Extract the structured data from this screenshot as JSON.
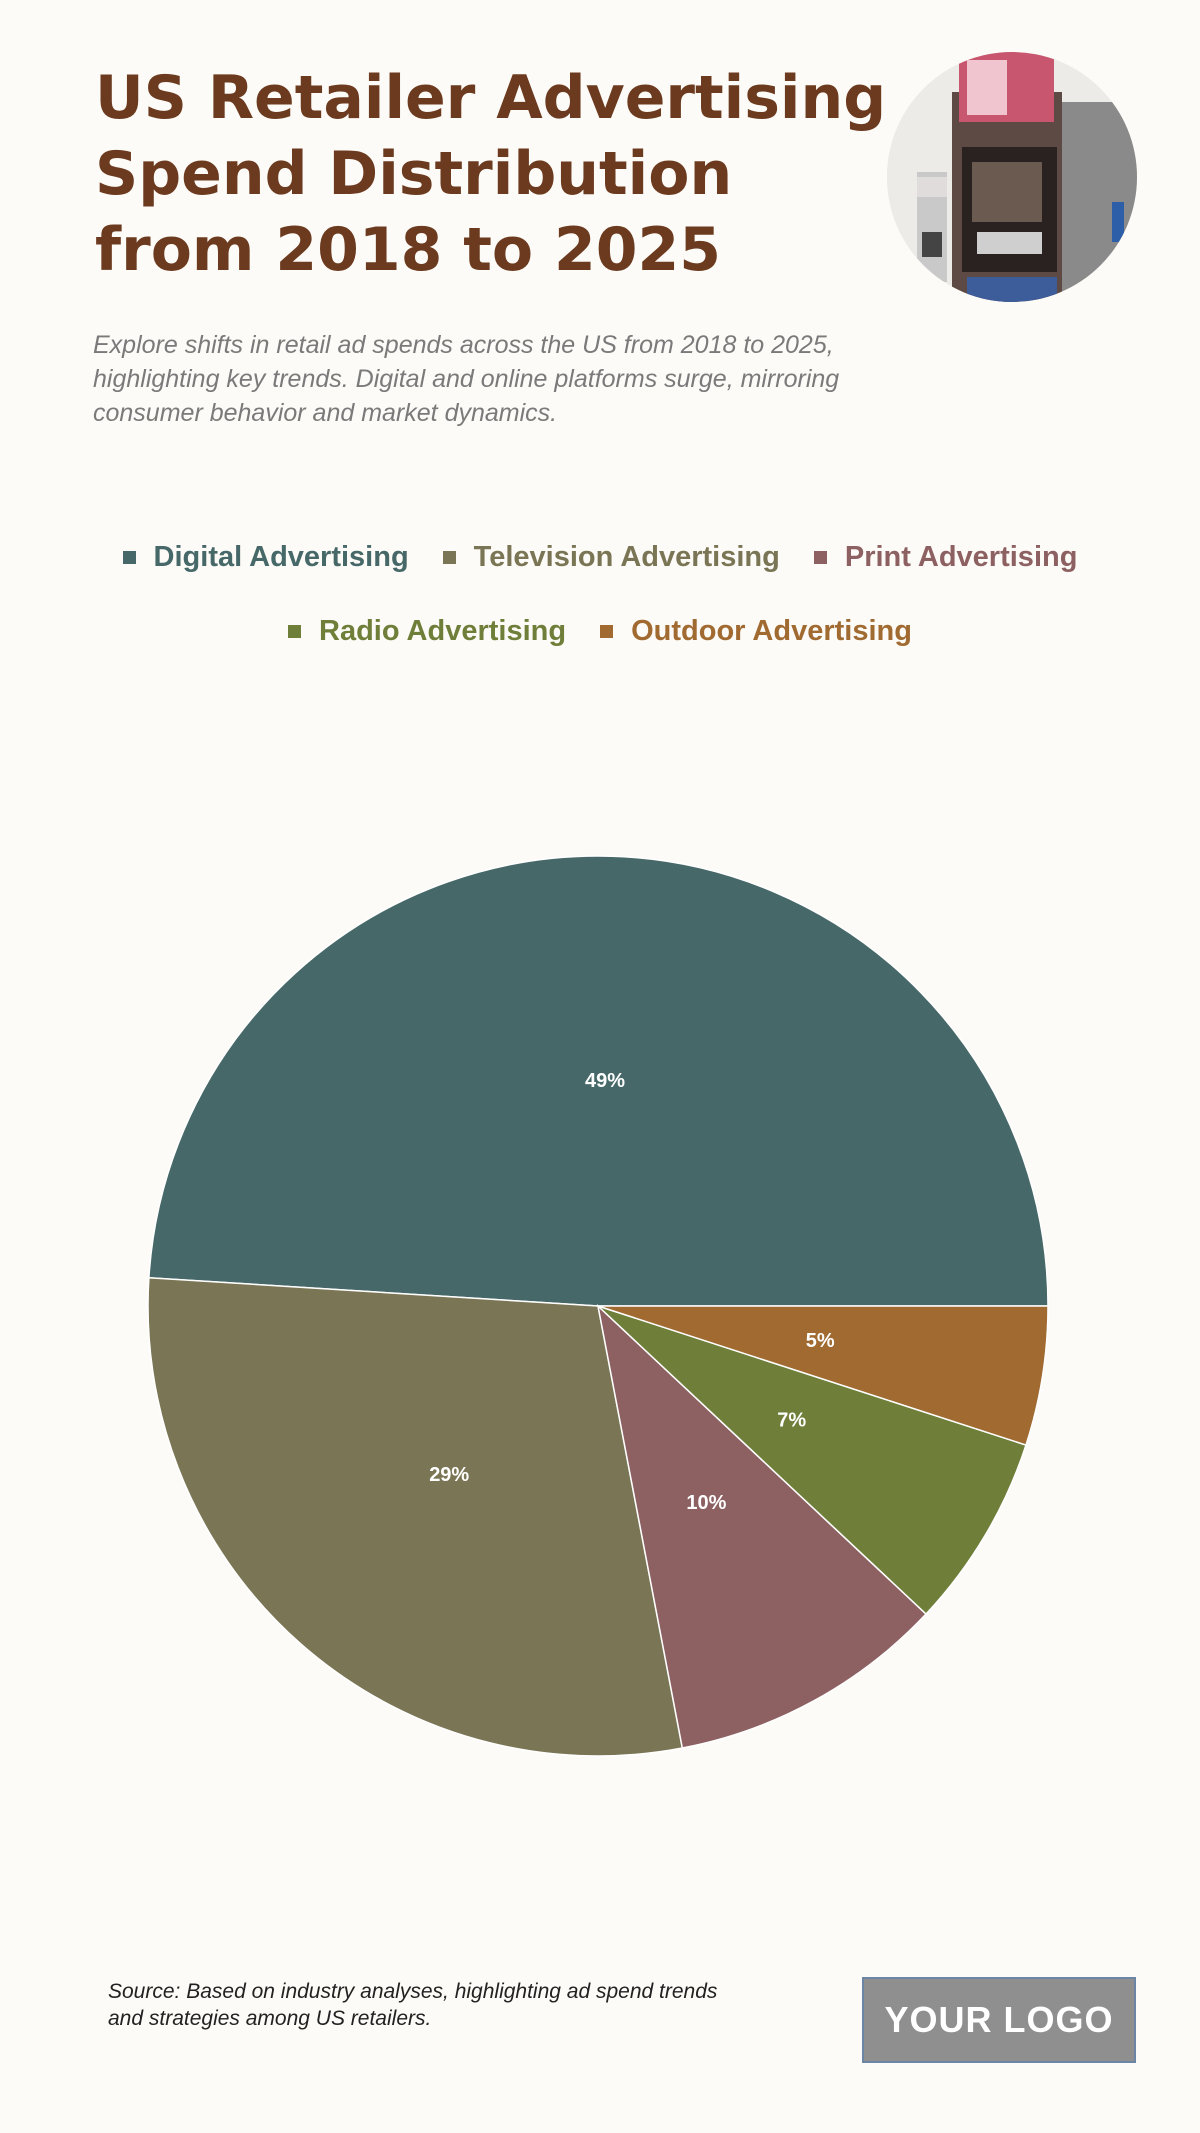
{
  "header": {
    "title": "US Retailer Advertising Spend Distribution from 2018 to 2025",
    "subtitle": "Explore shifts in retail ad spends across the US from 2018 to 2025, highlighting key trends. Digital and online platforms surge, mirroring consumer behavior and market dynamics."
  },
  "footer": {
    "source": "Source: Based on industry analyses, highlighting ad spend trends and strategies among US retailers.",
    "logo": "YOUR LOGO"
  },
  "chart_data": {
    "type": "pie",
    "legend_position": "top",
    "categories": [
      "Digital Advertising",
      "Television Advertising",
      "Print Advertising",
      "Radio Advertising",
      "Outdoor Advertising"
    ],
    "values": [
      49,
      29,
      10,
      7,
      5
    ],
    "labels": [
      "49%",
      "29%",
      "10%",
      "7%",
      "5%"
    ],
    "colors": [
      "#476868",
      "#7a7554",
      "#8d6062",
      "#6f7f3a",
      "#a06a31"
    ],
    "label_color": "#ffffff"
  }
}
